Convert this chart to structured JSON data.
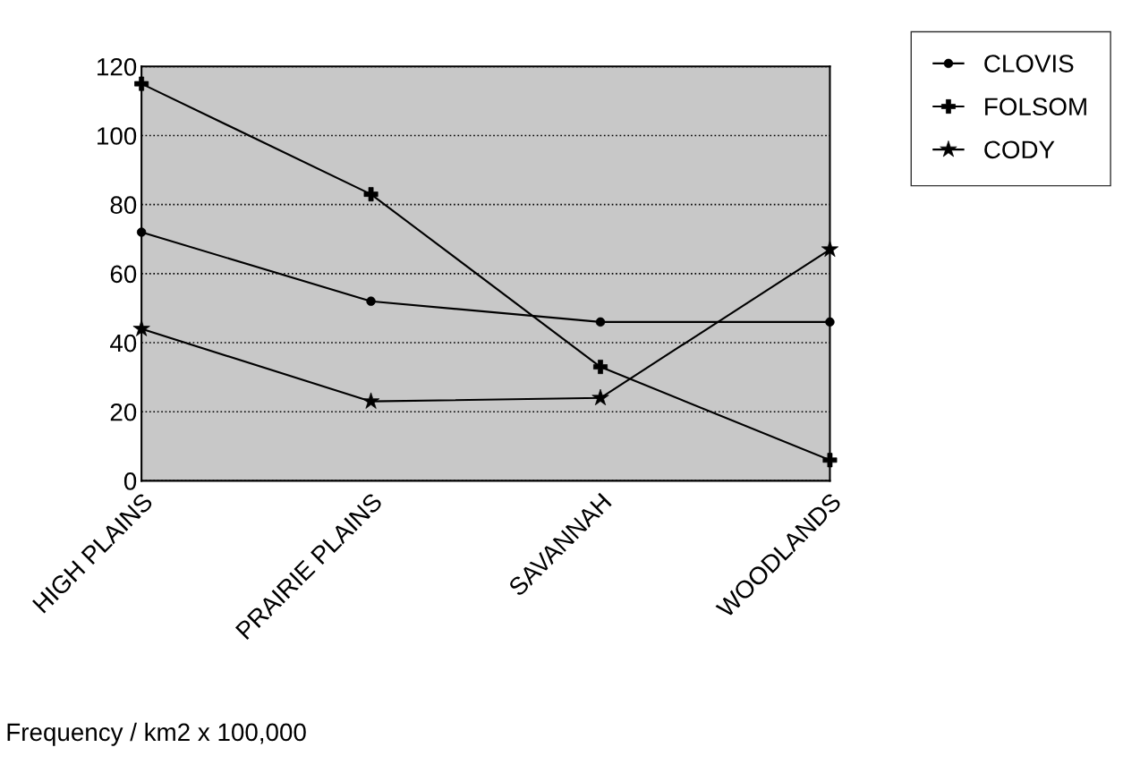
{
  "chart_data": {
    "type": "line",
    "categories": [
      "HIGH PLAINS",
      "PRAIRIE PLAINS",
      "SAVANNAH",
      "WOODLANDS"
    ],
    "series": [
      {
        "name": "CLOVIS",
        "color": "#000000",
        "marker": "circle",
        "values": [
          72,
          52,
          46,
          46
        ]
      },
      {
        "name": "FOLSOM",
        "color": "#000000",
        "marker": "cross",
        "values": [
          115,
          83,
          33,
          6
        ]
      },
      {
        "name": "CODY",
        "color": "#000000",
        "marker": "star",
        "values": [
          44,
          23,
          24,
          67
        ]
      }
    ],
    "ylim": [
      0,
      120
    ],
    "yticks": [
      0,
      20,
      40,
      60,
      80,
      100,
      120
    ],
    "grid": "y",
    "legend": "top right",
    "line_style": "solid",
    "annotations": [
      "Frequency / km2 x 100,000"
    ]
  }
}
